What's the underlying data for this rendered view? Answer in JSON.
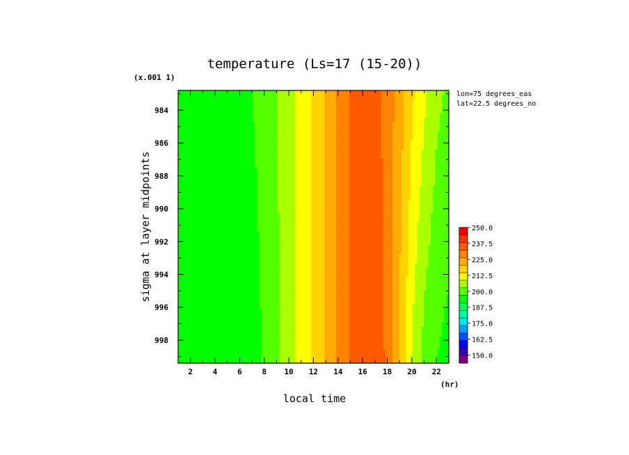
{
  "chart_data": {
    "type": "heatmap",
    "title": "temperature (Ls=17 (15-20))",
    "xlabel": "local time",
    "x_unit": "(hr)",
    "ylabel": "sigma at layer midpoints",
    "y_scale_note": "(x.001 1)",
    "annotations": [
      "lon=75 degrees_eas",
      "lat=22.5 degrees_no"
    ],
    "xlim": [
      1,
      23
    ],
    "ylim": [
      0.9994,
      0.9828
    ],
    "x_ticks": [
      2,
      4,
      6,
      8,
      10,
      12,
      14,
      16,
      18,
      20,
      22
    ],
    "y_ticks": [
      984,
      986,
      988,
      990,
      992,
      994,
      996,
      998
    ],
    "grid": false,
    "colorbar": {
      "min": 143.75,
      "max": 250.0,
      "step": 6.25,
      "labels": [
        "250.0",
        "237.5",
        "225.0",
        "212.5",
        "200.0",
        "187.5",
        "175.0",
        "162.5",
        "150.0"
      ],
      "colors": [
        "#800080",
        "#3c00b4",
        "#0000ff",
        "#0050ff",
        "#00a0ff",
        "#00e6e6",
        "#00ffaa",
        "#00ff55",
        "#00ff00",
        "#55ff00",
        "#aaff00",
        "#ffff00",
        "#ffd200",
        "#ffaa00",
        "#ff8200",
        "#ff5a00",
        "#ff3200",
        "#ff0000"
      ]
    },
    "z_profile_surface": [
      {
        "time": 1,
        "value": 196
      },
      {
        "time": 3,
        "value": 194
      },
      {
        "time": 5,
        "value": 194
      },
      {
        "time": 7,
        "value": 196
      },
      {
        "time": 8,
        "value": 201
      },
      {
        "time": 9,
        "value": 205
      },
      {
        "time": 10,
        "value": 210
      },
      {
        "time": 11,
        "value": 214
      },
      {
        "time": 12,
        "value": 220
      },
      {
        "time": 13,
        "value": 226
      },
      {
        "time": 14,
        "value": 232
      },
      {
        "time": 15,
        "value": 238
      },
      {
        "time": 16,
        "value": 242
      },
      {
        "time": 17,
        "value": 243
      },
      {
        "time": 18,
        "value": 236
      },
      {
        "time": 19,
        "value": 224
      },
      {
        "time": 20,
        "value": 212
      },
      {
        "time": 21,
        "value": 204
      },
      {
        "time": 22,
        "value": 200
      },
      {
        "time": 23,
        "value": 198
      }
    ],
    "z_profile_top": [
      {
        "time": 1,
        "value": 200
      },
      {
        "time": 3,
        "value": 200
      },
      {
        "time": 5,
        "value": 200
      },
      {
        "time": 7,
        "value": 200
      },
      {
        "time": 8,
        "value": 203
      },
      {
        "time": 9,
        "value": 206
      },
      {
        "time": 10,
        "value": 210
      },
      {
        "time": 11,
        "value": 215
      },
      {
        "time": 12,
        "value": 220
      },
      {
        "time": 13,
        "value": 226
      },
      {
        "time": 14,
        "value": 232
      },
      {
        "time": 15,
        "value": 238
      },
      {
        "time": 16,
        "value": 242
      },
      {
        "time": 17,
        "value": 240
      },
      {
        "time": 18,
        "value": 235
      },
      {
        "time": 19,
        "value": 228
      },
      {
        "time": 20,
        "value": 220
      },
      {
        "time": 21,
        "value": 214
      },
      {
        "time": 22,
        "value": 208
      },
      {
        "time": 23,
        "value": 205
      }
    ]
  }
}
